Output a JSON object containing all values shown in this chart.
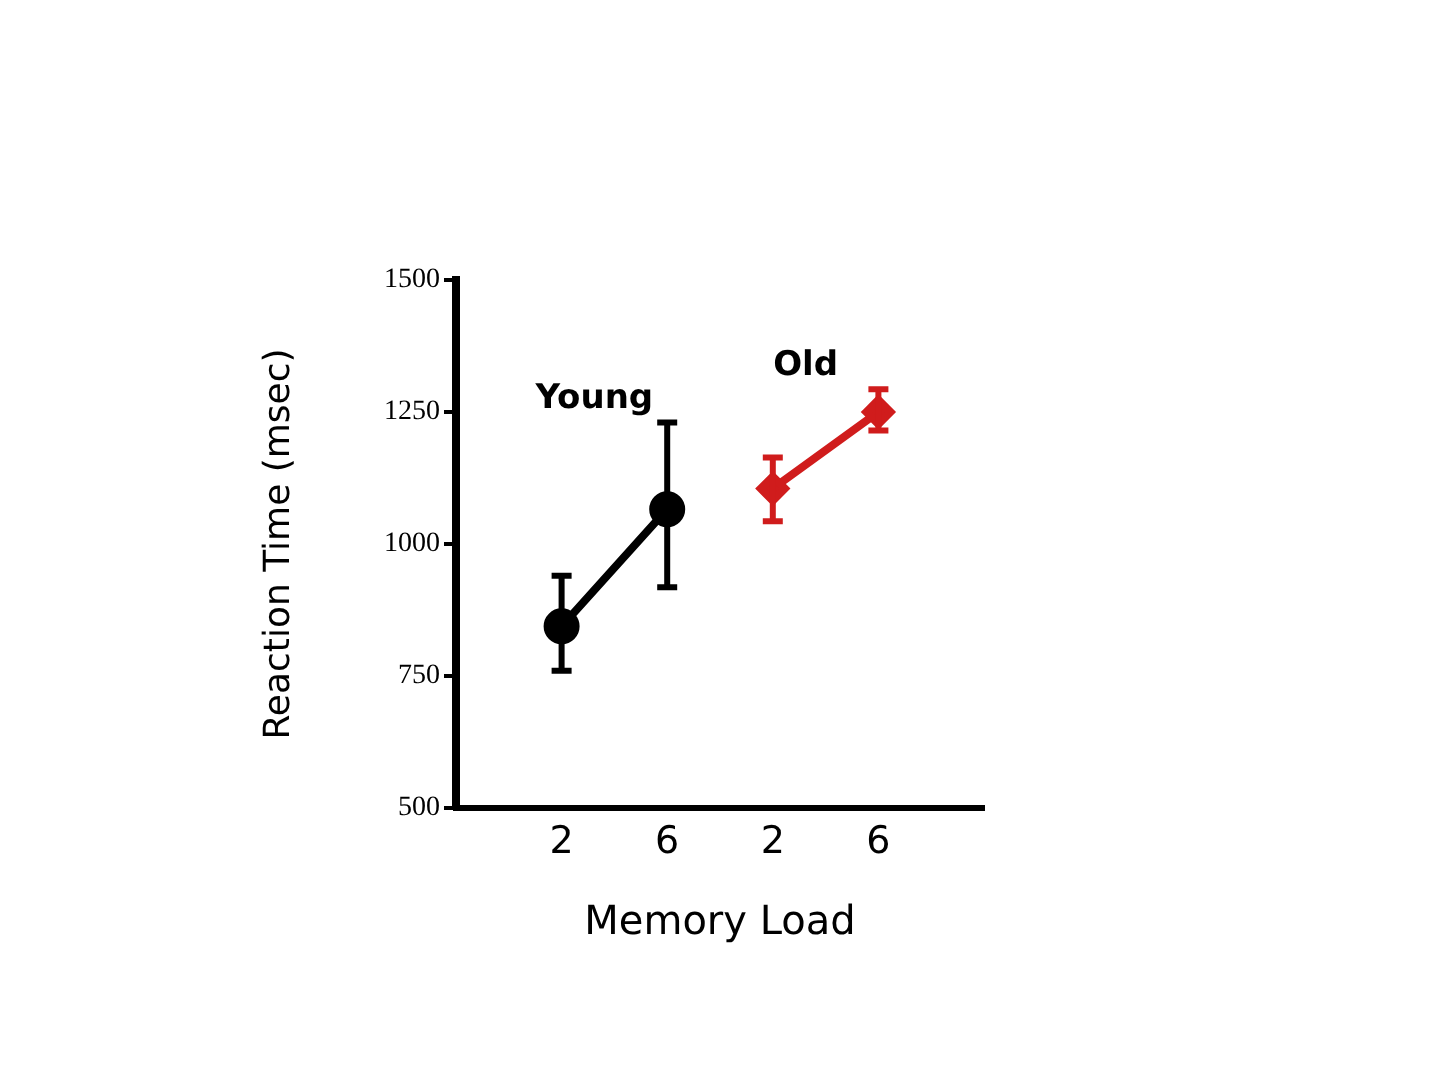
{
  "chart_data": {
    "type": "line",
    "xlabel": "Memory Load",
    "ylabel": "Reaction Time (msec)",
    "categories": [
      "2",
      "6",
      "2",
      "6"
    ],
    "ylim": [
      500,
      1500
    ],
    "yticks": [
      500,
      750,
      1000,
      1250,
      1500
    ],
    "grid": false,
    "legend": false,
    "series": [
      {
        "name": "Young",
        "color": "#000000",
        "marker": "circle",
        "values": [
          844,
          1066,
          null,
          null
        ],
        "errors": [
          [
            760,
            940
          ],
          [
            918,
            1230
          ],
          null,
          null
        ]
      },
      {
        "name": "Old",
        "color": "#d01c1c",
        "marker": "diamond",
        "values": [
          null,
          null,
          1105,
          1250
        ],
        "errors": [
          null,
          null,
          [
            1043,
            1164
          ],
          [
            1215,
            1293
          ]
        ]
      }
    ]
  }
}
